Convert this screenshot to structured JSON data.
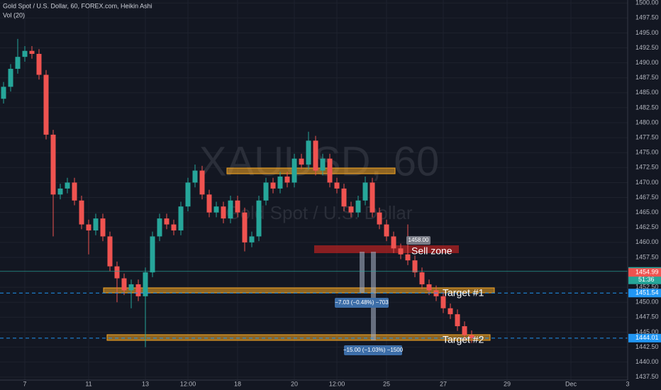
{
  "chart_data": {
    "type": "candlestick",
    "title": "Gold Spot / U.S. Dollar, 60, FOREX.com, Heikin Ashi",
    "subtitle": "Vol (20)",
    "watermark": "XAUUSD, 60",
    "watermark_sub": "Gold Spot / U.S. Dollar",
    "categories": [
      null,
      null,
      null,
      "7",
      null,
      null,
      null,
      null,
      null,
      null,
      null,
      null,
      "11",
      null,
      null,
      null,
      null,
      null,
      null,
      null,
      "13",
      null,
      null,
      null,
      null,
      null,
      "12:00",
      null,
      null,
      null,
      null,
      null,
      null,
      "18",
      null,
      null,
      null,
      null,
      null,
      null,
      null,
      "20",
      null,
      null,
      null,
      null,
      null,
      "12:00",
      null,
      null,
      null,
      null,
      null,
      null,
      "25",
      null,
      null,
      null,
      null,
      null,
      null,
      null,
      "27",
      null,
      null,
      null,
      null,
      null,
      null,
      null,
      null,
      "29",
      null,
      null,
      null,
      null,
      null,
      null,
      null,
      null,
      "Dec",
      null,
      null,
      null,
      null,
      null,
      null,
      null,
      "3"
    ],
    "open": [
      1484,
      1486,
      1489,
      1491,
      1492,
      1491.5,
      1488,
      1478,
      1468,
      1469,
      1470,
      1467,
      1463,
      1462,
      1464,
      1461,
      1456,
      1454,
      1452,
      1453,
      1451,
      1455,
      1461,
      1464,
      1463,
      1462,
      1466,
      1470,
      1472,
      1468,
      1465,
      1466,
      1464,
      1467,
      1465,
      1460,
      1461,
      1467,
      1470,
      1469,
      1471,
      1470,
      1474,
      1473,
      1477,
      1472,
      1474,
      1470,
      1469,
      1466,
      1465,
      1467,
      1470,
      1465,
      1463,
      1461,
      1459,
      1458,
      1457,
      1455,
      1453,
      1452,
      1451,
      1449,
      1448,
      1446,
      1444.5,
      null,
      null,
      null,
      null,
      null,
      null,
      null,
      null,
      null,
      null,
      null,
      null,
      null,
      null,
      null,
      null,
      null,
      null,
      null,
      null,
      null,
      null
    ],
    "high": [
      1486.8,
      1489.8,
      1494,
      1492.8,
      1492.8,
      1492.3,
      1488.8,
      1478.8,
      1469.8,
      1470.8,
      1470.8,
      1467.8,
      1463.8,
      1464.8,
      1464.8,
      1461.8,
      1456.8,
      1454.8,
      1453.8,
      1453.8,
      1455.8,
      1461.8,
      1464.8,
      1464.8,
      1463.8,
      1466.8,
      1470.8,
      1473,
      1472.8,
      1468.8,
      1466.8,
      1466.8,
      1467.8,
      1467.8,
      1465.8,
      1461.8,
      1467.8,
      1470.8,
      1470.8,
      1471.8,
      1471.8,
      1474.8,
      1474.8,
      1478.5,
      1477.8,
      1474.8,
      1474.8,
      1470.8,
      1469.8,
      1466.8,
      1467.8,
      1471,
      1470.8,
      1465.8,
      1463.8,
      1461.8,
      1459.8,
      1463,
      1457.8,
      1455.8,
      1453.8,
      1452.8,
      1451.8,
      1449.8,
      1448.8,
      1446.8,
      1445.3,
      null,
      null,
      null,
      null,
      null,
      null,
      null,
      null,
      null,
      null,
      null,
      null,
      null,
      null,
      null,
      null,
      null,
      null,
      null,
      null,
      null,
      null
    ],
    "low": [
      1483.2,
      1485.2,
      1488.2,
      1490.2,
      1490.7,
      1487.2,
      1477.2,
      1461,
      1467.2,
      1468.2,
      1466.2,
      1462.2,
      1458,
      1461.2,
      1460.2,
      1455.2,
      1450,
      1451.2,
      1449,
      1450.2,
      1442.5,
      1454.2,
      1460.2,
      1462.2,
      1461.2,
      1461.2,
      1465.2,
      1469.2,
      1467.2,
      1464.2,
      1464.2,
      1463.2,
      1463.2,
      1464.2,
      1458.5,
      1459.2,
      1460.2,
      1466.2,
      1468.2,
      1468.2,
      1469.2,
      1469.2,
      1472.2,
      1472.2,
      1471.2,
      1471.2,
      1469.2,
      1468.2,
      1465.2,
      1464.2,
      1464.2,
      1466.2,
      1464.2,
      1462.2,
      1460.2,
      1458.2,
      1457.2,
      1456.2,
      1454.2,
      1452.2,
      1451.2,
      1450.2,
      1448.2,
      1447.2,
      1445.2,
      1443.7,
      1443.2,
      null,
      null,
      null,
      null,
      null,
      null,
      null,
      null,
      null,
      null,
      null,
      null,
      null,
      null,
      null,
      null,
      null,
      null,
      null,
      null,
      null,
      null
    ],
    "close": [
      1486,
      1489,
      1491,
      1492,
      1491.5,
      1488,
      1478,
      1468,
      1469,
      1470,
      1467,
      1463,
      1462,
      1464,
      1461,
      1456,
      1454,
      1452,
      1453,
      1451,
      1455,
      1461,
      1464,
      1463,
      1462,
      1466,
      1470,
      1472,
      1468,
      1465,
      1466,
      1464,
      1467,
      1465,
      1460,
      1461,
      1467,
      1470,
      1469,
      1471,
      1470,
      1474,
      1473,
      1477,
      1472,
      1474,
      1470,
      1469,
      1466,
      1465,
      1467,
      1470,
      1465,
      1463,
      1461,
      1459,
      1458,
      1457,
      1455,
      1453,
      1452,
      1451,
      1449,
      1448,
      1446,
      1444.5,
      1444,
      null,
      null,
      null,
      null,
      null,
      null,
      null,
      null,
      null,
      null,
      null,
      null,
      null,
      null,
      null,
      null,
      null,
      null,
      null,
      null,
      null,
      null
    ],
    "up_color": "#26a69a",
    "down_color": "#ef5350",
    "ylim": [
      1437,
      1500.5
    ],
    "yticks": [
      {
        "value": 1437.5,
        "label": "1437.50"
      },
      {
        "value": 1440,
        "label": "1440.00"
      },
      {
        "value": 1442.5,
        "label": "1442.50"
      },
      {
        "value": 1445,
        "label": "1445.00"
      },
      {
        "value": 1447.5,
        "label": "1447.50"
      },
      {
        "value": 1450,
        "label": "1450.00"
      },
      {
        "value": 1452.5,
        "label": "1452.50"
      },
      {
        "value": 1455,
        "label": "1455.00"
      },
      {
        "value": 1457.5,
        "label": "1457.50"
      },
      {
        "value": 1460,
        "label": "1460.00"
      },
      {
        "value": 1462.5,
        "label": "1462.50"
      },
      {
        "value": 1465,
        "label": "1465.00"
      },
      {
        "value": 1467.5,
        "label": "1467.50"
      },
      {
        "value": 1470,
        "label": "1470.00"
      },
      {
        "value": 1472.5,
        "label": "1472.50"
      },
      {
        "value": 1475,
        "label": "1475.00"
      },
      {
        "value": 1477.5,
        "label": "1477.50"
      },
      {
        "value": 1480,
        "label": "1480.00"
      },
      {
        "value": 1482.5,
        "label": "1482.50"
      },
      {
        "value": 1485,
        "label": "1485.00"
      },
      {
        "value": 1487.5,
        "label": "1487.50"
      },
      {
        "value": 1490,
        "label": "1490.00"
      },
      {
        "value": 1492.5,
        "label": "1492.50"
      },
      {
        "value": 1495,
        "label": "1495.00"
      },
      {
        "value": 1497.5,
        "label": "1497.50"
      },
      {
        "value": 1500,
        "label": "1500.00"
      }
    ],
    "grid": true,
    "price_labels": [
      {
        "value": 1455.16,
        "color": "#26a69a"
      },
      {
        "value": 1454.99,
        "color": "#ef5350"
      },
      {
        "value": 1451.54,
        "color": "#2196f3"
      },
      {
        "value": 1444.01,
        "color": "#2196f3"
      }
    ],
    "countdown": "51:36",
    "annotations": {
      "sell_zone": "Sell zone",
      "target_1": "Target #1",
      "target_2": "Target #2",
      "price_tag": "1458.00",
      "measure_1": "−7.03 (−0.48%) −703",
      "measure_2": "−15.00 (−1.03%) −1500"
    }
  }
}
